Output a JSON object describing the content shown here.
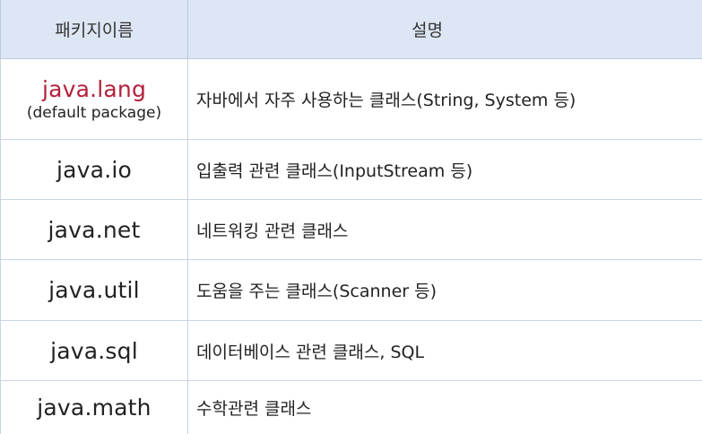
{
  "colors": {
    "header_background": "#dde6f4",
    "accent_package": "#b3203a",
    "grid_line": "#c9d3e3"
  },
  "header": {
    "package_col": "패키지이름",
    "description_col": "설명"
  },
  "rows": [
    {
      "package": "java.lang",
      "package_note": "(default package)",
      "description": "자바에서 자주 사용하는 클래스(String, System 등)"
    },
    {
      "package": "java.io",
      "description": "입출력 관련 클래스(InputStream 등)"
    },
    {
      "package": "java.net",
      "description": "네트워킹 관련 클래스"
    },
    {
      "package": "java.util",
      "description": "도움을 주는 클래스(Scanner 등)"
    },
    {
      "package": "java.sql",
      "description": "데이터베이스 관련 클래스, SQL"
    },
    {
      "package": "java.math",
      "description": "수학관련 클래스"
    }
  ]
}
